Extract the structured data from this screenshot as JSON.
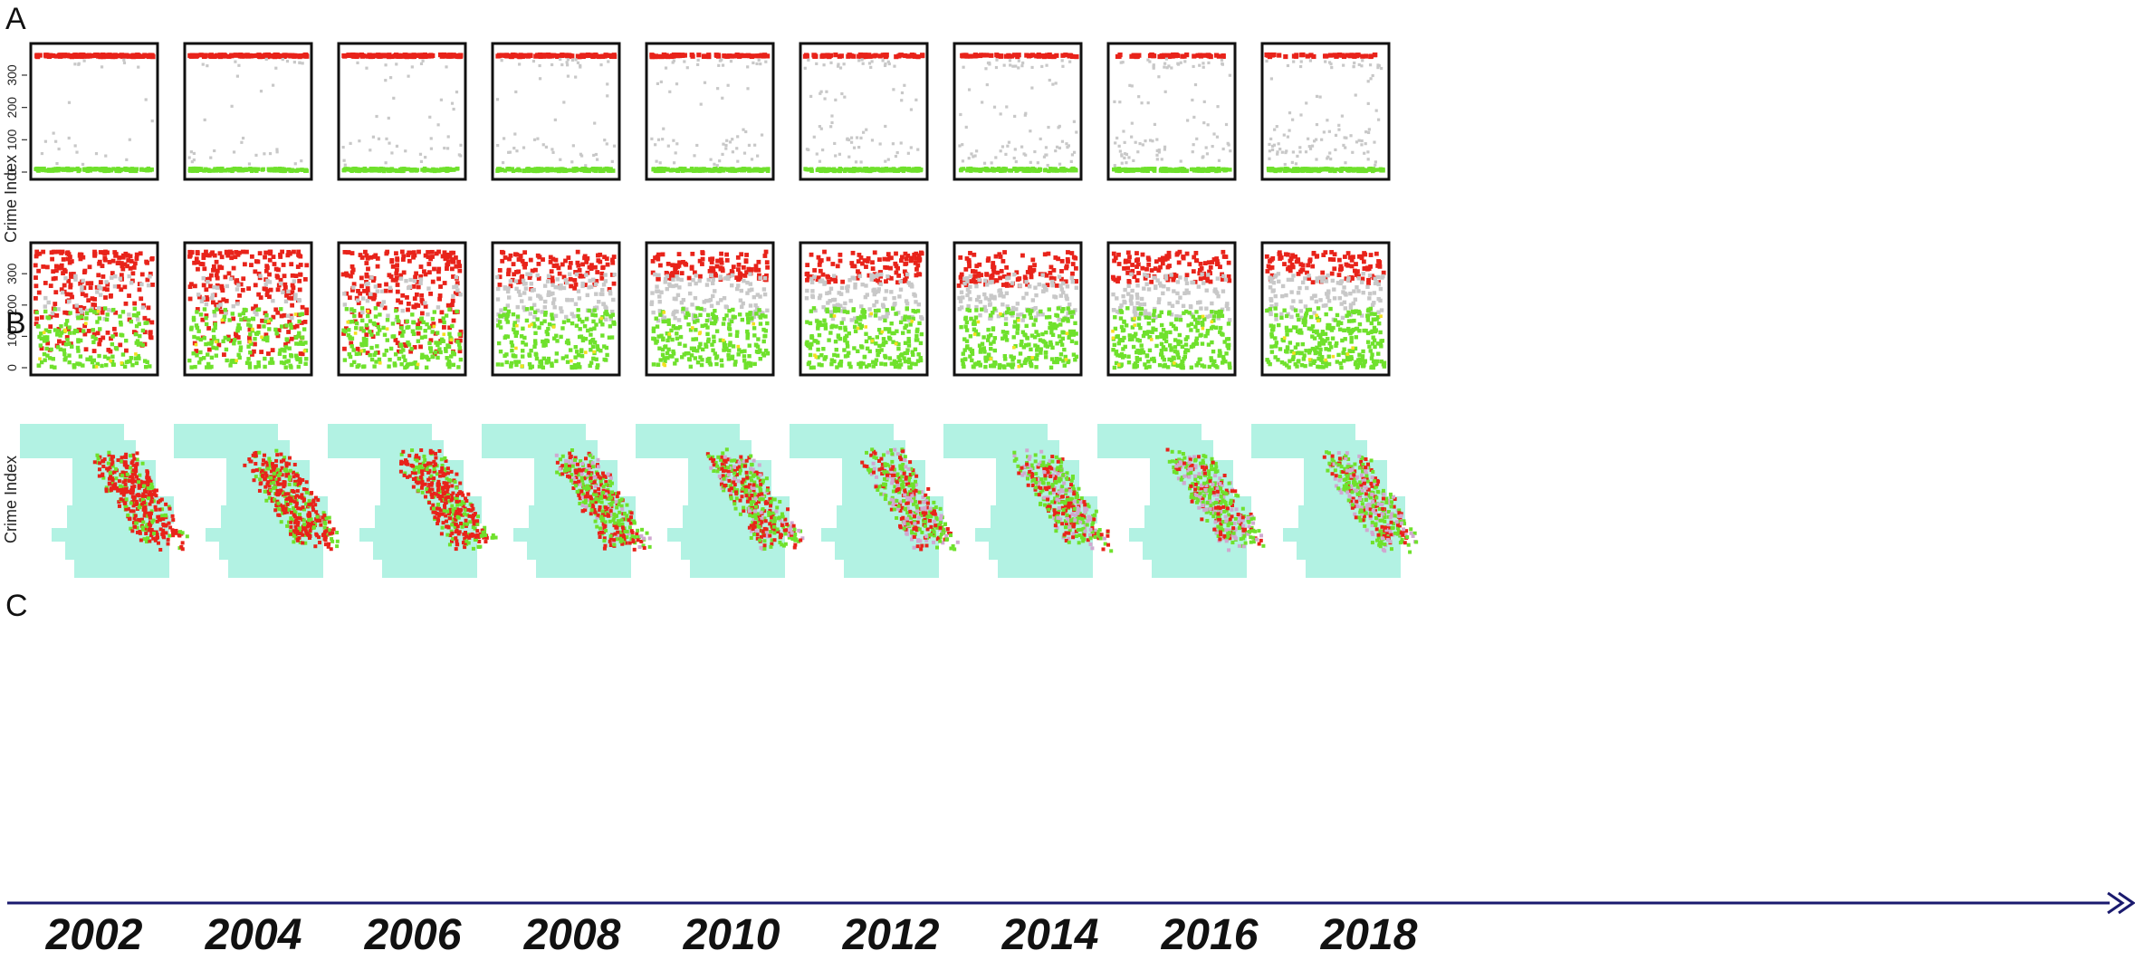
{
  "panels": {
    "a": "A",
    "b": "B",
    "c": "C"
  },
  "ylabel": "Crime Index",
  "yticks": [
    "0",
    "100",
    "200",
    "300"
  ],
  "years": [
    "2002",
    "2004",
    "2006",
    "2008",
    "2010",
    "2012",
    "2014",
    "2016",
    "2018"
  ],
  "colors": {
    "high": "#e8231a",
    "mid": "#c8c8c8",
    "low": "#6fe12c",
    "map_bg": "#b2f2e3",
    "axis": "#1a1a6e",
    "frame": "#111111"
  },
  "chart_data": [
    {
      "panel": "A",
      "type": "scatter",
      "ylabel": "Crime Index",
      "ylim": [
        0,
        370
      ],
      "yticks": [
        0,
        100,
        200,
        300
      ],
      "facets": [
        "2002",
        "2004",
        "2006",
        "2008",
        "2010",
        "2012",
        "2014",
        "2016",
        "2018"
      ],
      "series": [
        {
          "name": "",
          "color": "#e8231a",
          "y_center": 360
        },
        {
          "name": "",
          "color": "#c8c8c8"
        },
        {
          "name": "",
          "color": "#6fe12c",
          "y_center": 5
        }
      ],
      "high_band_density": [
        1.0,
        1.0,
        1.0,
        0.85,
        0.6,
        0.5,
        0.45,
        0.4,
        0.35
      ]
    },
    {
      "panel": "B",
      "type": "scatter",
      "ylabel": "Crime Index",
      "ylim": [
        0,
        370
      ],
      "yticks": [
        0,
        100,
        200,
        300
      ],
      "facets": [
        "2002",
        "2004",
        "2006",
        "2008",
        "2010",
        "2012",
        "2014",
        "2016",
        "2018"
      ],
      "series": [
        {
          "name": "",
          "color": "#e8231a"
        },
        {
          "name": "",
          "color": "#c8c8c8"
        },
        {
          "name": "",
          "color": "#6fe12c"
        }
      ],
      "red_lower_bound": [
        50,
        40,
        40,
        250,
        280,
        270,
        260,
        270,
        270
      ]
    },
    {
      "panel": "C",
      "type": "map",
      "facets": [
        "2002",
        "2004",
        "2006",
        "2008",
        "2010",
        "2012",
        "2014",
        "2016",
        "2018"
      ],
      "hotspot_intensity": [
        1.0,
        1.0,
        0.95,
        0.6,
        0.55,
        0.45,
        0.4,
        0.35,
        0.3
      ]
    }
  ]
}
